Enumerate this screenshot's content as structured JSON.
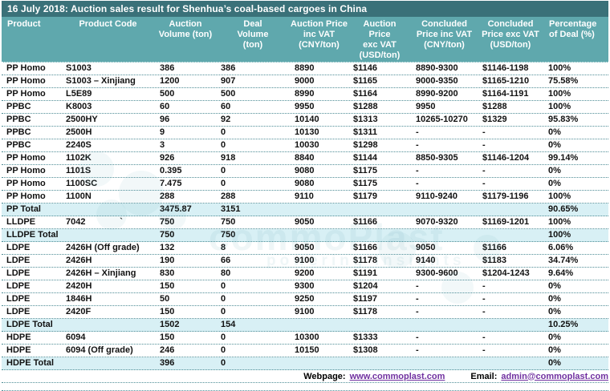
{
  "title": "16 July 2018: Auction sales result for Shenhua’s coal-based cargoes in China",
  "columns": [
    {
      "key": "product",
      "label": "Product",
      "lines": [
        "Product"
      ],
      "align": "left"
    },
    {
      "key": "product-code",
      "label": "Product Code",
      "lines": [
        "Product Code"
      ],
      "align": "center"
    },
    {
      "key": "auction-volume",
      "label": "Auction Volume (ton)",
      "lines": [
        "Auction",
        "Volume (ton)"
      ],
      "align": "center"
    },
    {
      "key": "deal-volume",
      "label": "Deal Volume (ton)",
      "lines": [
        "Deal",
        "Volume",
        "(ton)"
      ],
      "align": "center"
    },
    {
      "key": "auction-price-inc",
      "label": "Auction Price inc VAT (CNY/ton)",
      "lines": [
        "Auction Price",
        "inc VAT",
        "(CNY/ton)"
      ],
      "align": "center"
    },
    {
      "key": "auction-price-exc",
      "label": "Auction Price exc VAT (USD/ton)",
      "lines": [
        "Auction",
        "Price",
        "exc VAT",
        "(USD/ton)"
      ],
      "align": "center"
    },
    {
      "key": "concluded-price-inc",
      "label": "Concluded Price inc VAT (CNY/ton)",
      "lines": [
        "Concluded",
        "Price inc VAT",
        "(CNY/ton)"
      ],
      "align": "center"
    },
    {
      "key": "concluded-price-exc",
      "label": "Concluded Price exc VAT (USD/ton)",
      "lines": [
        "Concluded",
        "Price exc VAT",
        "(USD/ton)"
      ],
      "align": "center"
    },
    {
      "key": "percentage-of-deal",
      "label": "Percentage of Deal (%)",
      "lines": [
        "Percentage",
        "of Deal (%)"
      ],
      "align": "left"
    }
  ],
  "rows": [
    {
      "total": false,
      "cells": [
        "PP Homo",
        "S1003",
        "386",
        "386",
        "8890",
        "$1146",
        "8890-9300",
        "$1146-1198",
        "100%"
      ]
    },
    {
      "total": false,
      "cells": [
        "PP Homo",
        "S1003 – Xinjiang",
        "1200",
        "907",
        "9000",
        "$1165",
        "9000-9350",
        "$1165-1210",
        "75.58%"
      ]
    },
    {
      "total": false,
      "cells": [
        "PP Homo",
        "L5E89",
        "500",
        "500",
        "8990",
        "$1164",
        "8990-9200",
        "$1164-1191",
        "100%"
      ]
    },
    {
      "total": false,
      "cells": [
        "PPBC",
        "K8003",
        "60",
        "60",
        "9950",
        "$1288",
        "9950",
        "$1288",
        "100%"
      ]
    },
    {
      "total": false,
      "cells": [
        "PPBC",
        "2500HY",
        "96",
        "92",
        "10140",
        "$1313",
        "10265-10270",
        "$1329",
        "95.83%"
      ]
    },
    {
      "total": false,
      "cells": [
        "PPBC",
        "2500H",
        "9",
        "0",
        "10130",
        "$1311",
        "-",
        "-",
        "0%"
      ]
    },
    {
      "total": false,
      "cells": [
        "PPBC",
        "2240S",
        "3",
        "0",
        "10030",
        "$1298",
        "-",
        "-",
        "0%"
      ]
    },
    {
      "total": false,
      "cells": [
        "PP Homo",
        "1102K",
        "926",
        "918",
        "8840",
        "$1144",
        "8850-9305",
        "$1146-1204",
        "99.14%"
      ]
    },
    {
      "total": false,
      "cells": [
        "PP Homo",
        "1101S",
        "0.395",
        "0",
        "9080",
        "$1175",
        "-",
        "-",
        "0%"
      ]
    },
    {
      "total": false,
      "cells": [
        "PP Homo",
        "1100SC",
        "7.475",
        "0",
        "9080",
        "$1175",
        "-",
        "-",
        "0%"
      ]
    },
    {
      "total": false,
      "cells": [
        "PP Homo",
        "1100N",
        "288",
        "288",
        "9110",
        "$1179",
        "9110-9240",
        "$1179-1196",
        "100%"
      ]
    },
    {
      "total": true,
      "cells": [
        "PP Total",
        "",
        "3475.87",
        "3151",
        "",
        "",
        "",
        "",
        "90.65%"
      ]
    },
    {
      "total": false,
      "cells": [
        "LLDPE",
        "7042              `",
        "750",
        "750",
        "9050",
        "$1166",
        "9070-9320",
        "$1169-1201",
        "100%"
      ]
    },
    {
      "total": true,
      "cells": [
        "LLDPE Total",
        "",
        "750",
        "750",
        "",
        "",
        "",
        "",
        "100%"
      ]
    },
    {
      "total": false,
      "cells": [
        "LDPE",
        "2426H (Off grade)",
        "132",
        "8",
        "9050",
        "$1166",
        "9050",
        "$1166",
        "6.06%"
      ]
    },
    {
      "total": false,
      "cells": [
        "LDPE",
        "2426H",
        "190",
        "66",
        "9100",
        "$1178",
        "9140",
        "$1183",
        "34.74%"
      ]
    },
    {
      "total": false,
      "cells": [
        "LDPE",
        "2426H – Xinjiang",
        "830",
        "80",
        "9200",
        "$1191",
        "9300-9600",
        "$1204-1243",
        "9.64%"
      ]
    },
    {
      "total": false,
      "cells": [
        "LDPE",
        "2420H",
        "150",
        "0",
        "9300",
        "$1204",
        "-",
        "-",
        "0%"
      ]
    },
    {
      "total": false,
      "cells": [
        "LDPE",
        "1846H",
        "50",
        "0",
        "9250",
        "$1197",
        "-",
        "-",
        "0%"
      ]
    },
    {
      "total": false,
      "cells": [
        "LDPE",
        "2420F",
        "150",
        "0",
        "9100",
        "$1178",
        "-",
        "-",
        "0%"
      ]
    },
    {
      "total": true,
      "cells": [
        "LDPE Total",
        "",
        "1502",
        "154",
        "",
        "",
        "",
        "",
        "10.25%"
      ]
    },
    {
      "total": false,
      "cells": [
        "HDPE",
        "6094",
        "150",
        "0",
        "10300",
        "$1333",
        "-",
        "-",
        "0%"
      ]
    },
    {
      "total": false,
      "cells": [
        "HDPE",
        "6094 (Off grade)",
        "246",
        "0",
        "10150",
        "$1308",
        "-",
        "-",
        "0%"
      ]
    },
    {
      "total": true,
      "cells": [
        "HDPE Total",
        "",
        "396",
        "0",
        "",
        "",
        "",
        "",
        "0%"
      ]
    }
  ],
  "footer": {
    "webpage_label": "Webpage:",
    "webpage_url": "www.commoplast.com",
    "email_label": "Email:",
    "email_address": "admin@commoplast.com"
  },
  "watermark": {
    "text": "commoPlast",
    "tagline": "powering Insights"
  },
  "colors": {
    "title_bg": "#3a7179",
    "header_bg": "#5fa8ad",
    "total_row_bg": "#d8f0f5",
    "row_border": "#4f8d96",
    "link": "#7030a0"
  }
}
